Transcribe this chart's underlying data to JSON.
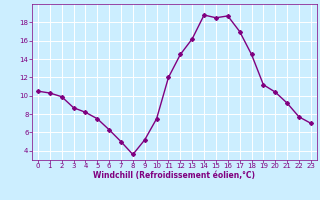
{
  "x": [
    0,
    1,
    2,
    3,
    4,
    5,
    6,
    7,
    8,
    9,
    10,
    11,
    12,
    13,
    14,
    15,
    16,
    17,
    18,
    19,
    20,
    21,
    22,
    23
  ],
  "y": [
    10.5,
    10.3,
    9.9,
    8.7,
    8.2,
    7.5,
    6.3,
    5.0,
    3.6,
    5.2,
    7.5,
    12.0,
    14.5,
    16.2,
    18.8,
    18.5,
    18.7,
    17.0,
    14.5,
    11.2,
    10.4,
    9.2,
    7.7,
    7.0
  ],
  "line_color": "#800080",
  "marker": "D",
  "marker_size": 2,
  "bg_color": "#cceeff",
  "grid_color": "#ffffff",
  "xlabel": "Windchill (Refroidissement éolien,°C)",
  "xlabel_color": "#800080",
  "tick_color": "#800080",
  "ylim": [
    3,
    20
  ],
  "yticks": [
    4,
    6,
    8,
    10,
    12,
    14,
    16,
    18
  ],
  "xticks": [
    0,
    1,
    2,
    3,
    4,
    5,
    6,
    7,
    8,
    9,
    10,
    11,
    12,
    13,
    14,
    15,
    16,
    17,
    18,
    19,
    20,
    21,
    22,
    23
  ],
  "line_width": 1.0,
  "tick_fontsize": 5.0,
  "xlabel_fontsize": 5.5
}
